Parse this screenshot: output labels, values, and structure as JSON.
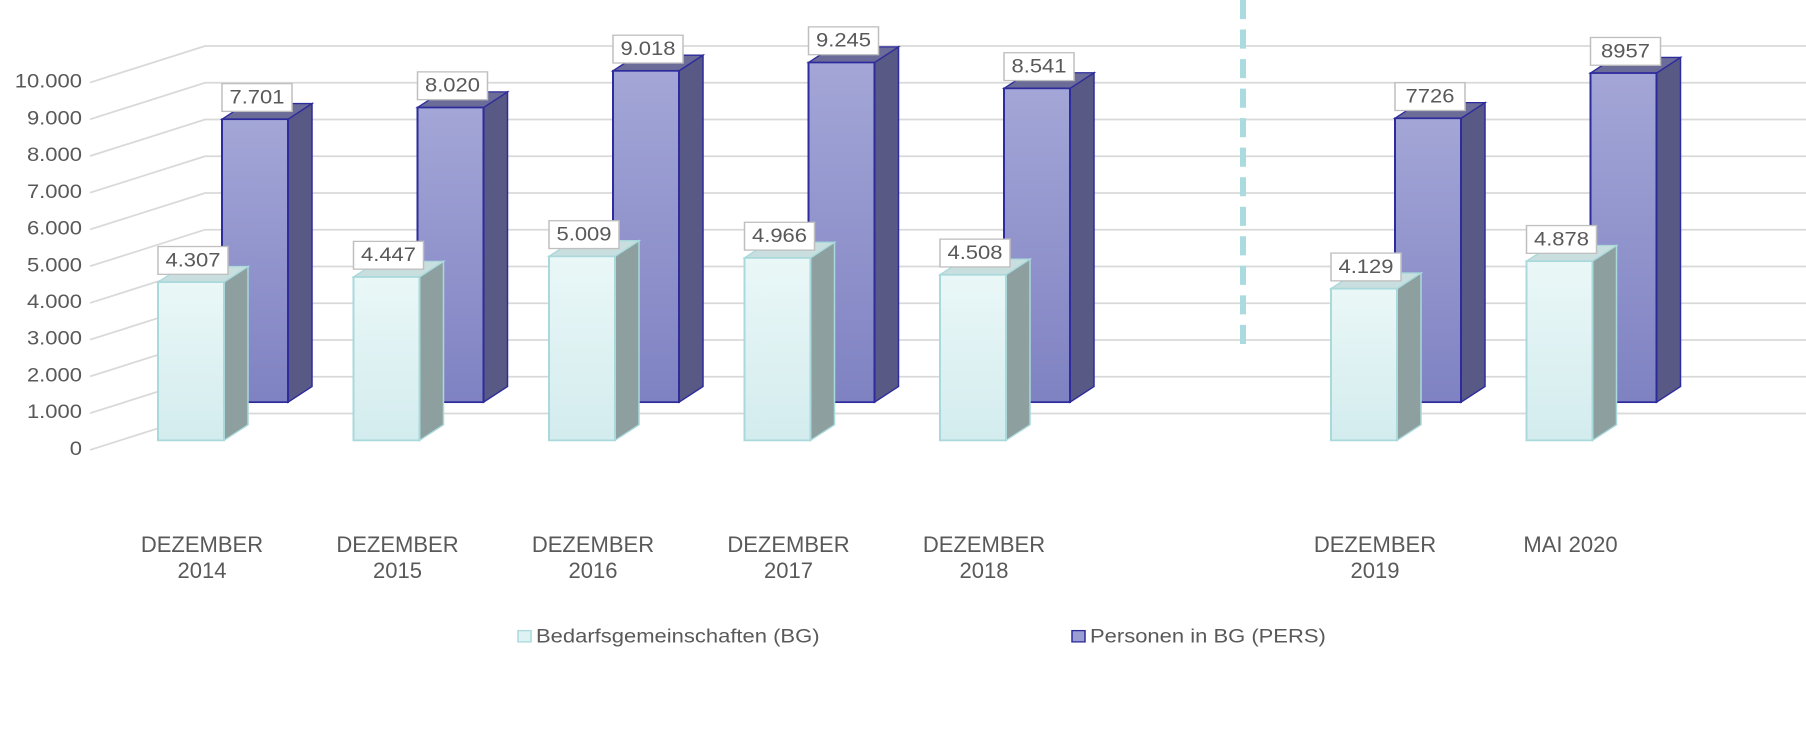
{
  "chart_data": {
    "type": "bar3d",
    "categories": [
      "DEZEMBER 2014",
      "DEZEMBER 2015",
      "DEZEMBER 2016",
      "DEZEMBER 2017",
      "DEZEMBER 2018",
      null,
      "DEZEMBER 2019",
      "MAI 2020"
    ],
    "series": [
      {
        "name": "Bedarfsgemeinschaften (BG)",
        "color": "#dff2f3",
        "values": [
          4307,
          4447,
          5009,
          4966,
          4508,
          null,
          4129,
          4878
        ],
        "value_labels": [
          "4.307",
          "4.447",
          "5.009",
          "4.966",
          "4.508",
          null,
          "4.129",
          "4.878"
        ]
      },
      {
        "name": "Personen in BG (PERS)",
        "color": "#9a9dd2",
        "values": [
          7701,
          8020,
          9018,
          9245,
          8541,
          null,
          7726,
          8957
        ],
        "value_labels": [
          "7.701",
          "8.020",
          "9.018",
          "9.245",
          "8.541",
          null,
          "7726",
          "8957"
        ]
      }
    ],
    "ylim": [
      0,
      10000
    ],
    "yticks": [
      0,
      {
        "value": 1000,
        "label": "1.000"
      },
      {
        "value": 2000,
        "label": "2.000"
      },
      {
        "value": 3000,
        "label": "3.000"
      },
      {
        "value": 4000,
        "label": "4.000"
      },
      {
        "value": 5000,
        "label": "5.000"
      },
      {
        "value": 6000,
        "label": "6.000"
      },
      {
        "value": 7000,
        "label": "7.000"
      },
      {
        "value": 8000,
        "label": "8.000"
      },
      {
        "value": 9000,
        "label": "9.000"
      },
      {
        "value": 10000,
        "label": "10.000"
      }
    ],
    "grid": true,
    "legend": "bottom"
  }
}
